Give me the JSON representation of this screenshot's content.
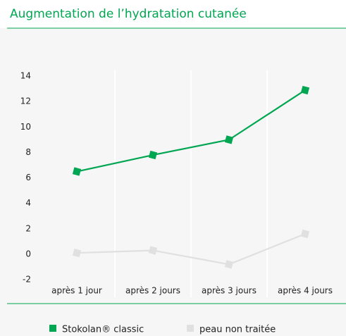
{
  "chart_data": {
    "type": "line",
    "title": "Augmentation de l’hydratation cutanée",
    "categories": [
      "après 1 jour",
      "après 2 jours",
      "après 3 jours",
      "après 4 jours"
    ],
    "series": [
      {
        "name": "Stokolan® classic",
        "color": "#00a651",
        "values": [
          6.5,
          7.8,
          9.0,
          12.9
        ]
      },
      {
        "name": "peau non traitée",
        "color": "#e0e0e0",
        "values": [
          0.1,
          0.3,
          -0.8,
          1.6
        ]
      }
    ],
    "ylim": [
      -2,
      16
    ],
    "yticks": [
      -2,
      0,
      2,
      4,
      6,
      8,
      10,
      12,
      14
    ]
  }
}
